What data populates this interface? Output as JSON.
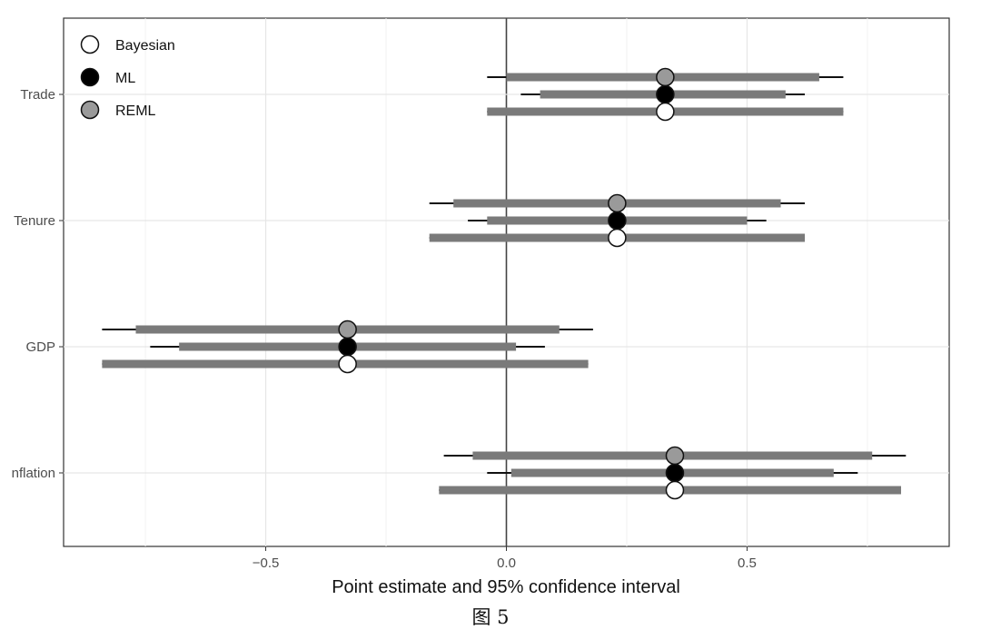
{
  "caption": "图 5",
  "chart_data": {
    "type": "forest",
    "xlabel": "Point estimate and 95% confidence interval",
    "ylabel": "",
    "xlim": [
      -0.92,
      0.92
    ],
    "xticks": [
      {
        "value": -0.5,
        "label": "−0.5"
      },
      {
        "value": 0.0,
        "label": "0.0"
      },
      {
        "value": 0.5,
        "label": "0.5"
      }
    ],
    "grid": true,
    "legend_position": "top-left",
    "categories": [
      "Trade",
      "Tenure",
      "GDP",
      "Inflation"
    ],
    "category_labels": [
      "Trade",
      "Tenure",
      "GDP",
      "nflation"
    ],
    "series": [
      {
        "name": "REML",
        "marker_color": "#9a9a9a",
        "estimates": [
          0.33,
          0.23,
          -0.33,
          0.35
        ],
        "inner": [
          [
            0.0,
            0.65
          ],
          [
            -0.11,
            0.57
          ],
          [
            -0.77,
            0.11
          ],
          [
            -0.07,
            0.76
          ]
        ],
        "outer": [
          [
            -0.04,
            0.7
          ],
          [
            -0.16,
            0.62
          ],
          [
            -0.84,
            0.18
          ],
          [
            -0.13,
            0.83
          ]
        ]
      },
      {
        "name": "ML",
        "marker_color": "#000000",
        "estimates": [
          0.33,
          0.23,
          -0.33,
          0.35
        ],
        "inner": [
          [
            0.07,
            0.58
          ],
          [
            -0.04,
            0.5
          ],
          [
            -0.68,
            0.02
          ],
          [
            0.01,
            0.68
          ]
        ],
        "outer": [
          [
            0.03,
            0.62
          ],
          [
            -0.08,
            0.54
          ],
          [
            -0.74,
            0.08
          ],
          [
            -0.04,
            0.73
          ]
        ]
      },
      {
        "name": "Bayesian",
        "marker_color": "#ffffff",
        "estimates": [
          0.33,
          0.23,
          -0.33,
          0.35
        ],
        "inner": [
          [
            -0.04,
            0.7
          ],
          [
            -0.16,
            0.62
          ],
          [
            -0.84,
            0.17
          ],
          [
            -0.14,
            0.82
          ]
        ],
        "outer": [
          [
            -0.04,
            0.7
          ],
          [
            -0.16,
            0.62
          ],
          [
            -0.84,
            0.17
          ],
          [
            -0.14,
            0.82
          ]
        ]
      }
    ],
    "legend": [
      "Bayesian",
      "ML",
      "REML"
    ],
    "colors": {
      "inner_bar": "#7a7a7a",
      "outer_line": "#111111",
      "grid": "#e6e6e6",
      "zero_line": "#444444"
    }
  }
}
